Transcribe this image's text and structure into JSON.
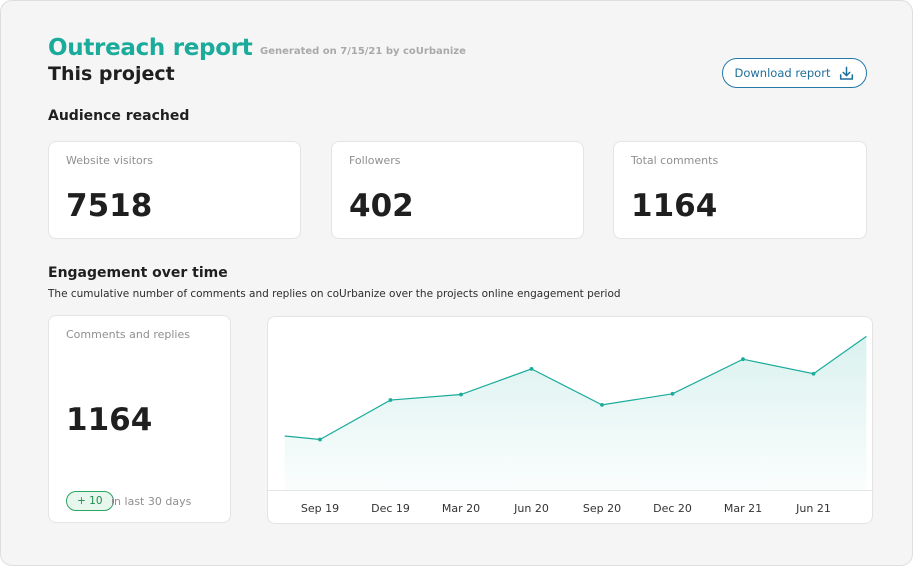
{
  "header": {
    "title": "Outreach report",
    "generated": "Generated on 7/15/21 by coUrbanize",
    "subtitle": "This project",
    "download_label": "Download report"
  },
  "audience": {
    "title": "Audience reached",
    "cards": [
      {
        "label": "Website visitors",
        "value": "7518"
      },
      {
        "label": "Followers",
        "value": "402"
      },
      {
        "label": "Total comments",
        "value": "1164"
      }
    ]
  },
  "engagement": {
    "title": "Engagement over time",
    "description": "The cumulative number of comments and replies on coUrbanize over the projects online engagement period",
    "card": {
      "label": "Comments and replies",
      "value": "1164",
      "delta": "+ 10",
      "delta_note": "in last 30 days"
    }
  },
  "colors": {
    "accent": "#1aab9b",
    "button": "#2479a8",
    "positive": "#2aa760"
  },
  "chart_data": {
    "type": "area",
    "title": "",
    "xlabel": "",
    "ylabel": "",
    "x_tick_labels": [
      "Sep 19",
      "Dec 19",
      "Mar 20",
      "Jun 20",
      "Sep 20",
      "Dec 20",
      "Mar 21",
      "Jun 21"
    ],
    "x": [
      -0.5,
      0,
      1,
      2,
      3,
      4,
      5,
      6,
      7,
      7.75
    ],
    "values": [
      78,
      73,
      130,
      138,
      175,
      123,
      139,
      189,
      168,
      222
    ],
    "ylim": [
      0,
      250
    ],
    "grid": false,
    "legend": "none",
    "y_axis_labels": false
  }
}
